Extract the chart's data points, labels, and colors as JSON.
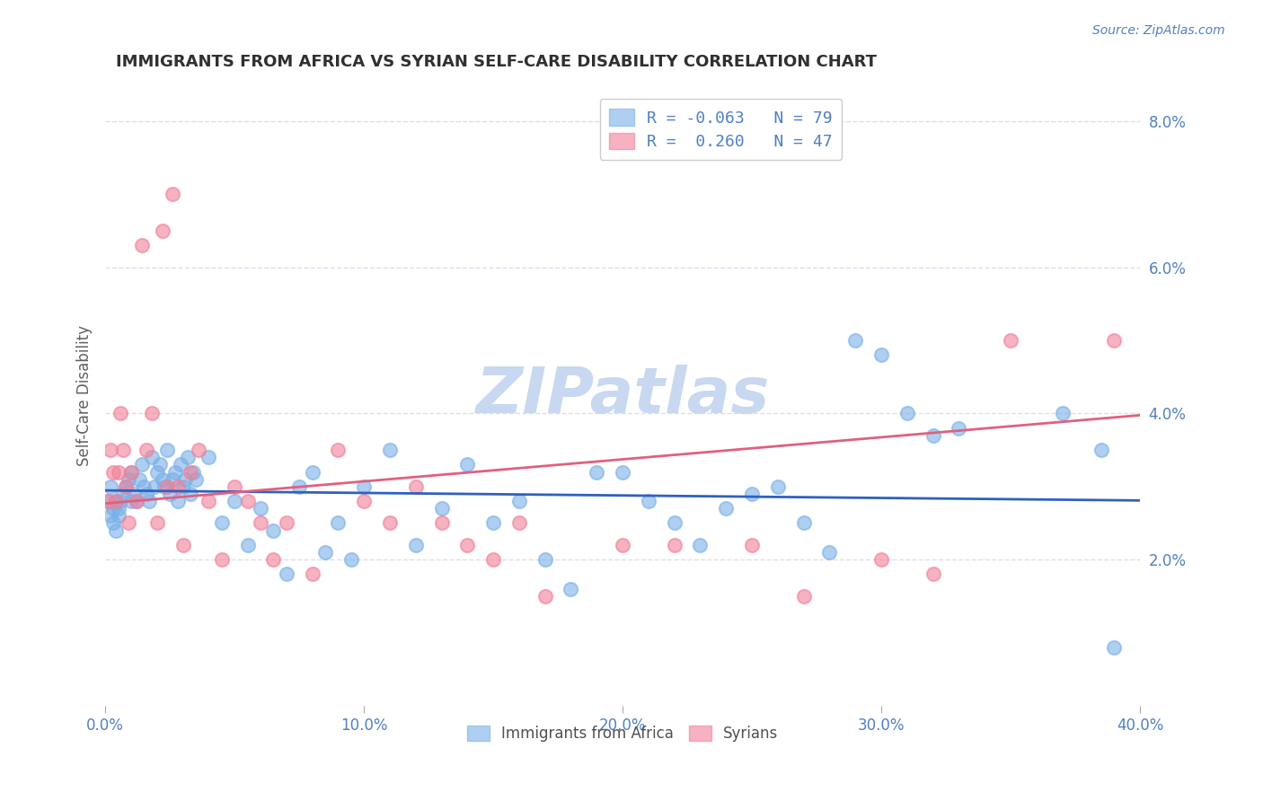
{
  "title": "IMMIGRANTS FROM AFRICA VS SYRIAN SELF-CARE DISABILITY CORRELATION CHART",
  "source": "Source: ZipAtlas.com",
  "xlabel_bottom": "",
  "ylabel_left": "Self-Care Disability",
  "xlim": [
    0.0,
    0.4
  ],
  "ylim": [
    0.0,
    0.085
  ],
  "xticks": [
    0.0,
    0.1,
    0.2,
    0.3,
    0.4
  ],
  "xtick_labels": [
    "0.0%",
    "10.0%",
    "20.0%",
    "30.0%",
    "40.0%"
  ],
  "yticks_right": [
    0.02,
    0.04,
    0.06,
    0.08
  ],
  "ytick_labels_right": [
    "2.0%",
    "4.0%",
    "6.0%",
    "8.0%"
  ],
  "legend_entries": [
    {
      "label": "R = -0.063   N = 79",
      "color": "#7090d0"
    },
    {
      "label": "R =  0.260   N = 47",
      "color": "#e07090"
    }
  ],
  "africa_R": -0.063,
  "africa_N": 79,
  "syria_R": 0.26,
  "syria_N": 47,
  "africa_color": "#7ab0e8",
  "syria_color": "#f08098",
  "africa_line_color": "#3060c0",
  "syria_line_color": "#e06080",
  "background_color": "#ffffff",
  "grid_color": "#ddddee",
  "title_color": "#303030",
  "axis_color": "#5080c0",
  "watermark_text": "ZIPatlas",
  "watermark_color": "#c8d8f0",
  "africa_scatter_x": [
    0.001,
    0.002,
    0.002,
    0.003,
    0.003,
    0.004,
    0.004,
    0.005,
    0.005,
    0.006,
    0.007,
    0.008,
    0.009,
    0.01,
    0.01,
    0.011,
    0.012,
    0.013,
    0.014,
    0.015,
    0.016,
    0.017,
    0.018,
    0.019,
    0.02,
    0.021,
    0.022,
    0.023,
    0.024,
    0.025,
    0.026,
    0.027,
    0.028,
    0.029,
    0.03,
    0.031,
    0.032,
    0.033,
    0.034,
    0.035,
    0.04,
    0.045,
    0.05,
    0.055,
    0.06,
    0.065,
    0.07,
    0.075,
    0.08,
    0.085,
    0.09,
    0.095,
    0.1,
    0.11,
    0.12,
    0.13,
    0.14,
    0.15,
    0.16,
    0.17,
    0.18,
    0.19,
    0.2,
    0.21,
    0.22,
    0.23,
    0.24,
    0.25,
    0.26,
    0.27,
    0.28,
    0.29,
    0.3,
    0.31,
    0.32,
    0.33,
    0.37,
    0.385,
    0.39
  ],
  "africa_scatter_y": [
    0.028,
    0.026,
    0.03,
    0.025,
    0.027,
    0.028,
    0.024,
    0.027,
    0.026,
    0.028,
    0.029,
    0.03,
    0.031,
    0.028,
    0.032,
    0.029,
    0.028,
    0.031,
    0.033,
    0.03,
    0.029,
    0.028,
    0.034,
    0.03,
    0.032,
    0.033,
    0.031,
    0.03,
    0.035,
    0.029,
    0.031,
    0.032,
    0.028,
    0.033,
    0.03,
    0.031,
    0.034,
    0.029,
    0.032,
    0.031,
    0.034,
    0.025,
    0.028,
    0.022,
    0.027,
    0.024,
    0.018,
    0.03,
    0.032,
    0.021,
    0.025,
    0.02,
    0.03,
    0.035,
    0.022,
    0.027,
    0.033,
    0.025,
    0.028,
    0.02,
    0.016,
    0.032,
    0.032,
    0.028,
    0.025,
    0.022,
    0.027,
    0.029,
    0.03,
    0.025,
    0.021,
    0.05,
    0.048,
    0.04,
    0.037,
    0.038,
    0.04,
    0.035,
    0.008
  ],
  "syria_scatter_x": [
    0.001,
    0.002,
    0.003,
    0.004,
    0.005,
    0.006,
    0.007,
    0.008,
    0.009,
    0.01,
    0.012,
    0.014,
    0.016,
    0.018,
    0.02,
    0.022,
    0.024,
    0.026,
    0.028,
    0.03,
    0.033,
    0.036,
    0.04,
    0.045,
    0.05,
    0.055,
    0.06,
    0.065,
    0.07,
    0.08,
    0.09,
    0.1,
    0.11,
    0.12,
    0.13,
    0.14,
    0.15,
    0.16,
    0.17,
    0.2,
    0.22,
    0.25,
    0.27,
    0.3,
    0.32,
    0.35,
    0.39
  ],
  "syria_scatter_y": [
    0.028,
    0.035,
    0.032,
    0.028,
    0.032,
    0.04,
    0.035,
    0.03,
    0.025,
    0.032,
    0.028,
    0.063,
    0.035,
    0.04,
    0.025,
    0.065,
    0.03,
    0.07,
    0.03,
    0.022,
    0.032,
    0.035,
    0.028,
    0.02,
    0.03,
    0.028,
    0.025,
    0.02,
    0.025,
    0.018,
    0.035,
    0.028,
    0.025,
    0.03,
    0.025,
    0.022,
    0.02,
    0.025,
    0.015,
    0.022,
    0.022,
    0.022,
    0.015,
    0.02,
    0.018,
    0.05,
    0.05
  ]
}
